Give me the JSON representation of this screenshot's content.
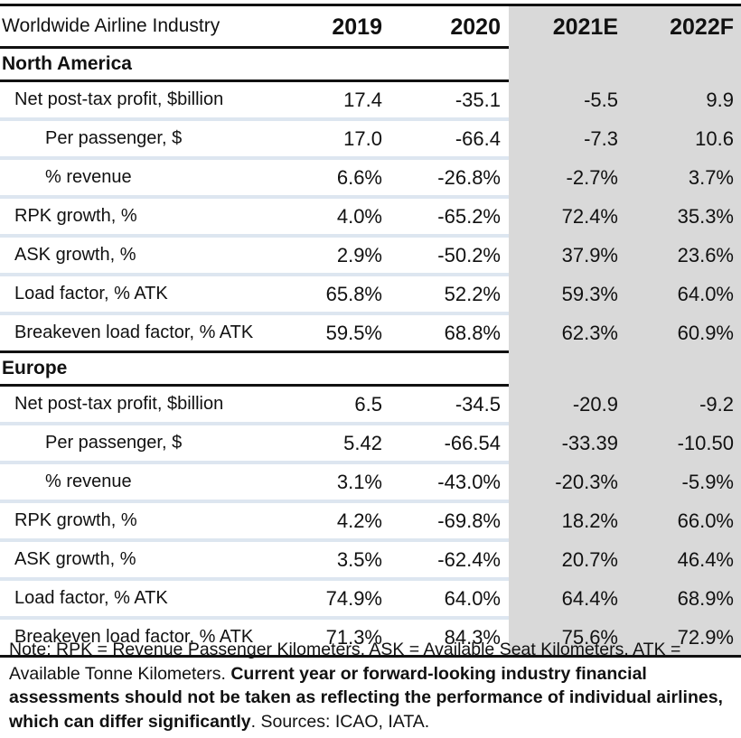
{
  "table": {
    "title": "Worldwide Airline Industry",
    "columns": [
      "2019",
      "2020",
      "2021E",
      "2022F"
    ],
    "regions": [
      {
        "name": "North America",
        "rows": [
          {
            "label": "Net post-tax profit, $billion",
            "indent": false,
            "values": [
              "17.4",
              "-35.1",
              "-5.5",
              "9.9"
            ]
          },
          {
            "label": "Per passenger, $",
            "indent": true,
            "values": [
              "17.0",
              "-66.4",
              "-7.3",
              "10.6"
            ]
          },
          {
            "label": "% revenue",
            "indent": true,
            "values": [
              "6.6%",
              "-26.8%",
              "-2.7%",
              "3.7%"
            ]
          },
          {
            "label": "RPK growth, %",
            "indent": false,
            "values": [
              "4.0%",
              "-65.2%",
              "72.4%",
              "35.3%"
            ]
          },
          {
            "label": "ASK growth, %",
            "indent": false,
            "values": [
              "2.9%",
              "-50.2%",
              "37.9%",
              "23.6%"
            ]
          },
          {
            "label": "Load factor, % ATK",
            "indent": false,
            "values": [
              "65.8%",
              "52.2%",
              "59.3%",
              "64.0%"
            ]
          },
          {
            "label": "Breakeven load factor, % ATK",
            "indent": false,
            "values": [
              "59.5%",
              "68.8%",
              "62.3%",
              "60.9%"
            ]
          }
        ]
      },
      {
        "name": "Europe",
        "rows": [
          {
            "label": "Net post-tax profit, $billion",
            "indent": false,
            "values": [
              "6.5",
              "-34.5",
              "-20.9",
              "-9.2"
            ]
          },
          {
            "label": "Per passenger, $",
            "indent": true,
            "values": [
              "5.42",
              "-66.54",
              "-33.39",
              "-10.50"
            ]
          },
          {
            "label": "% revenue",
            "indent": true,
            "values": [
              "3.1%",
              "-43.0%",
              "-20.3%",
              "-5.9%"
            ]
          },
          {
            "label": "RPK growth, %",
            "indent": false,
            "values": [
              "4.2%",
              "-69.8%",
              "18.2%",
              "66.0%"
            ]
          },
          {
            "label": "ASK growth, %",
            "indent": false,
            "values": [
              "3.5%",
              "-62.4%",
              "20.7%",
              "46.4%"
            ]
          },
          {
            "label": "Load factor, % ATK",
            "indent": false,
            "values": [
              "74.9%",
              "64.0%",
              "64.4%",
              "68.9%"
            ]
          },
          {
            "label": "Breakeven load factor, % ATK",
            "indent": false,
            "values": [
              "71.3%",
              "84.3%",
              "75.6%",
              "72.9%"
            ]
          }
        ]
      }
    ]
  },
  "note": {
    "prefix": "Note: RPK = Revenue Passenger Kilometers, ASK = Available Seat Kilometers, ATK = Available Tonne Kilometers. ",
    "bold": "Current year or forward-looking industry financial assessments should not be taken as reflecting the performance of individual airlines, which can differ significantly",
    "suffix": ". Sources: ICAO, IATA."
  },
  "colors": {
    "forecast_shade": "#d9d9d9",
    "row_separator": "#dde6f0",
    "rule": "#111111"
  }
}
